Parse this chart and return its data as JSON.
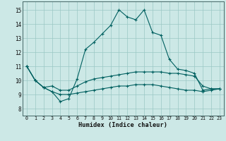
{
  "xlabel": "Humidex (Indice chaleur)",
  "xlim": [
    -0.5,
    23.5
  ],
  "ylim": [
    7.5,
    15.6
  ],
  "xticks": [
    0,
    1,
    2,
    3,
    4,
    5,
    6,
    7,
    8,
    9,
    10,
    11,
    12,
    13,
    14,
    15,
    16,
    17,
    18,
    19,
    20,
    21,
    22,
    23
  ],
  "yticks": [
    8,
    9,
    10,
    11,
    12,
    13,
    14,
    15
  ],
  "bg_color": "#cce8e6",
  "grid_color": "#9ac8c4",
  "line_color": "#006060",
  "lines": [
    [
      11.0,
      10.0,
      9.5,
      9.2,
      8.5,
      8.7,
      10.1,
      12.2,
      12.7,
      13.3,
      13.9,
      15.0,
      14.5,
      14.3,
      15.0,
      13.4,
      13.2,
      11.5,
      10.8,
      10.7,
      10.5,
      9.3,
      9.4,
      9.4
    ],
    [
      11.0,
      10.0,
      9.5,
      9.6,
      9.3,
      9.3,
      9.6,
      9.9,
      10.1,
      10.2,
      10.3,
      10.4,
      10.5,
      10.6,
      10.6,
      10.6,
      10.6,
      10.5,
      10.5,
      10.4,
      10.3,
      9.6,
      9.4,
      9.4
    ],
    [
      11.0,
      10.0,
      9.5,
      9.2,
      9.0,
      9.0,
      9.1,
      9.2,
      9.3,
      9.4,
      9.5,
      9.6,
      9.6,
      9.7,
      9.7,
      9.7,
      9.6,
      9.5,
      9.4,
      9.3,
      9.3,
      9.2,
      9.3,
      9.4
    ]
  ]
}
